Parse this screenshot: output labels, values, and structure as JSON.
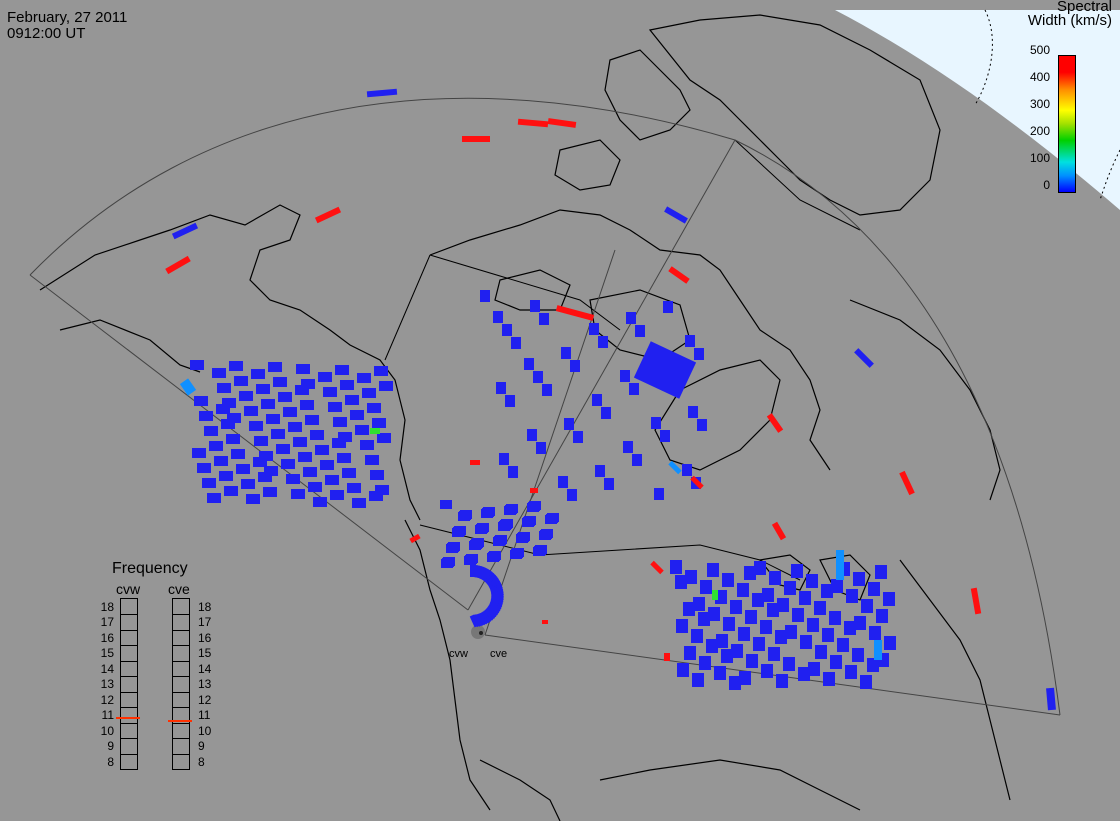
{
  "timestamp": {
    "date": "February, 27 2011",
    "time": "0912:00 UT"
  },
  "colorbar": {
    "title_line1": "Spectral",
    "title_line2": "Width (km/s)",
    "ticks": [
      "500",
      "400",
      "300",
      "200",
      "100",
      "0"
    ],
    "range": [
      0,
      500
    ],
    "colors": [
      "#0000ff",
      "#0090ff",
      "#00e0e0",
      "#00d000",
      "#ffff00",
      "#ff9000",
      "#ff0000"
    ]
  },
  "frequency_panel": {
    "title": "Frequency",
    "columns": [
      "cvw",
      "cve"
    ],
    "levels": [
      "18",
      "17",
      "16",
      "15",
      "14",
      "13",
      "12",
      "11",
      "10",
      "9",
      "8"
    ],
    "cvw_value_mhz": 10.8,
    "cve_value_mhz": 10.6,
    "marker_color": "#ff3000"
  },
  "stations": {
    "west": "cvw",
    "east": "cve"
  },
  "colors": {
    "background": "#969696",
    "coast": "#000000",
    "fov_outline": "#444444",
    "polar_cap": "#e8f6ff"
  }
}
